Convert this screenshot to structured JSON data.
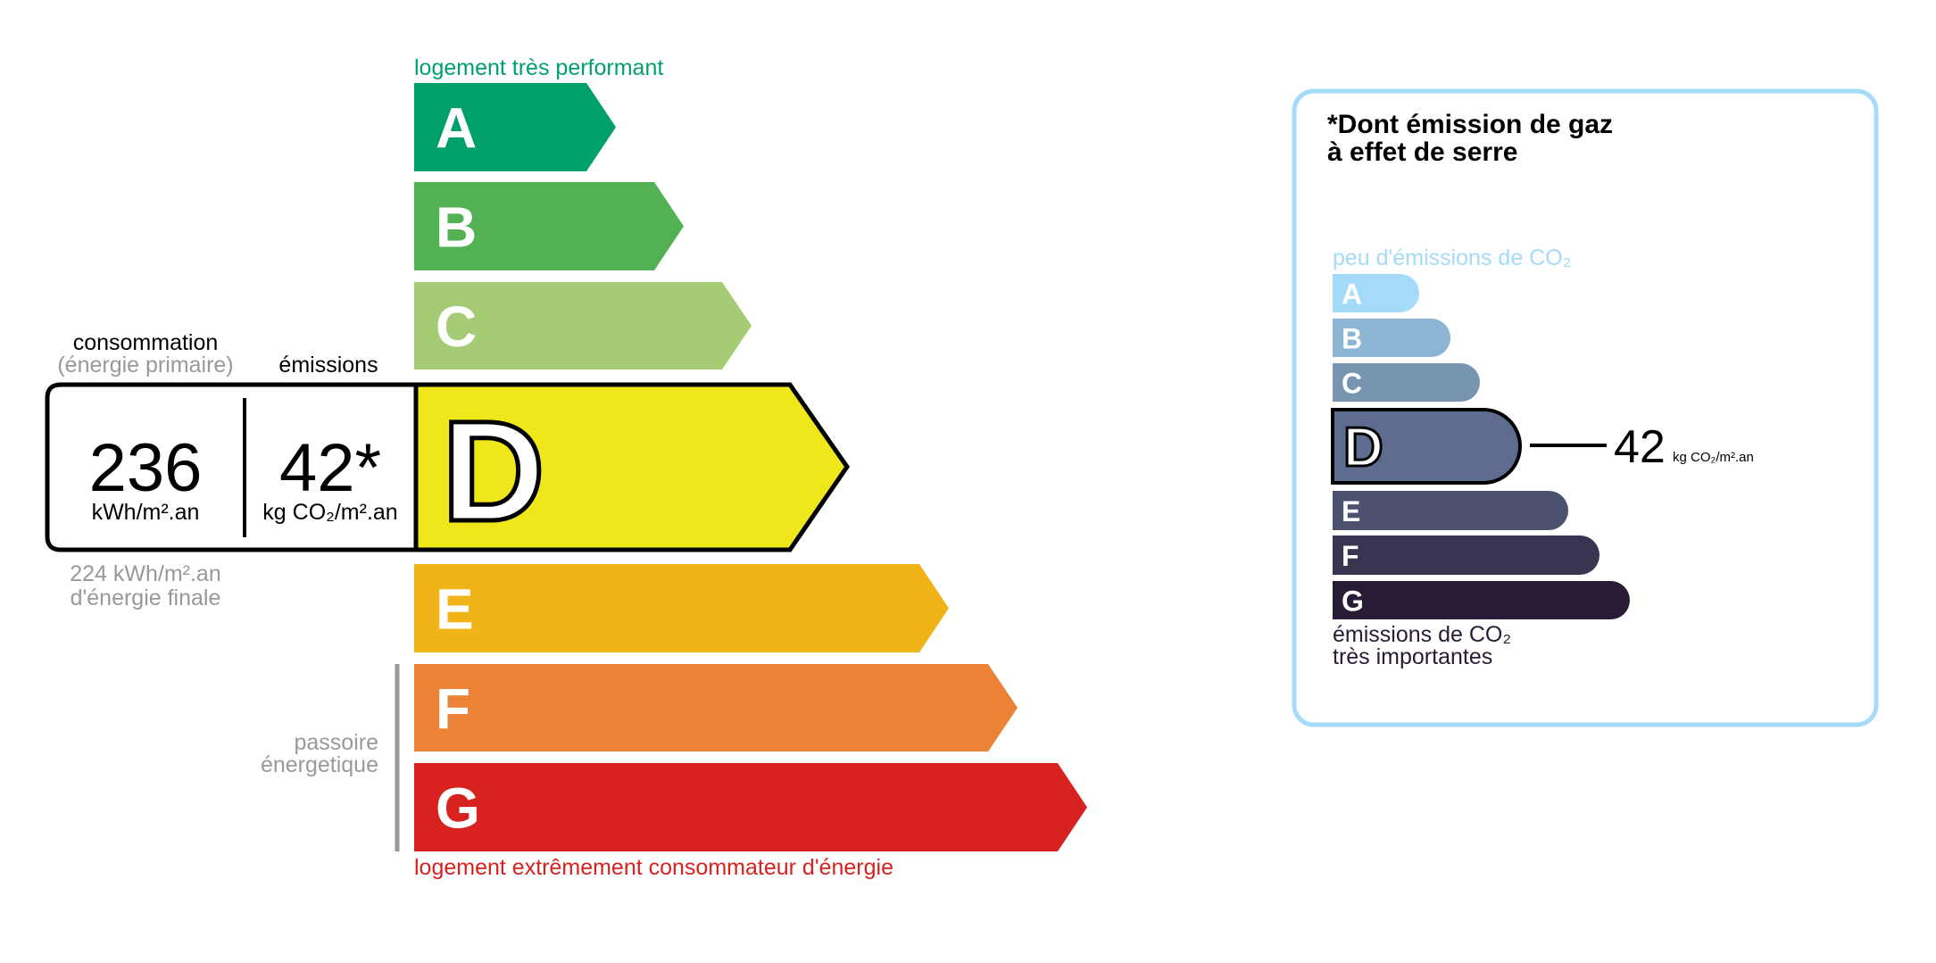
{
  "energy": {
    "top_label": "logement très performant",
    "bottom_label": "logement extrêmement consommateur d'énergie",
    "passoire_label": [
      "passoire",
      "énergetique"
    ],
    "classes": [
      {
        "letter": "A",
        "color": "#00a06d"
      },
      {
        "letter": "B",
        "color": "#52b153"
      },
      {
        "letter": "C",
        "color": "#a5cc74"
      },
      {
        "letter": "D",
        "color": "#f0e61c"
      },
      {
        "letter": "E",
        "color": "#f0b419"
      },
      {
        "letter": "F",
        "color": "#eb8235"
      },
      {
        "letter": "G",
        "color": "#d7221f"
      }
    ],
    "current_class": "D",
    "consumption_heading": "consommation",
    "consumption_subheading": "(énergie primaire)",
    "emissions_heading": "émissions",
    "consumption_value": "236",
    "consumption_unit": "kWh/m².an",
    "emissions_value": "42*",
    "emissions_unit": "kg CO₂/m².an",
    "final_energy_value": "224 kWh/m².an",
    "final_energy_label": "d'énergie finale",
    "top_color": "#00a06d",
    "bottom_color": "#d7221f"
  },
  "ghg": {
    "title_line1": "*Dont émission de gaz",
    "title_line2": "à effet de serre",
    "top_label": "peu d'émissions de CO₂",
    "bottom_label_line1": "émissions de CO₂",
    "bottom_label_line2": "très importantes",
    "classes": [
      {
        "letter": "A",
        "color": "#a4dbf8"
      },
      {
        "letter": "B",
        "color": "#8cb4d3"
      },
      {
        "letter": "C",
        "color": "#7794b1"
      },
      {
        "letter": "D",
        "color": "#5e6c8f"
      },
      {
        "letter": "E",
        "color": "#4c5170"
      },
      {
        "letter": "F",
        "color": "#383551"
      },
      {
        "letter": "G",
        "color": "#281b35"
      }
    ],
    "current_class": "D",
    "value": "42",
    "unit": "kg CO₂/m².an",
    "border_color": "#a4dbf8"
  }
}
